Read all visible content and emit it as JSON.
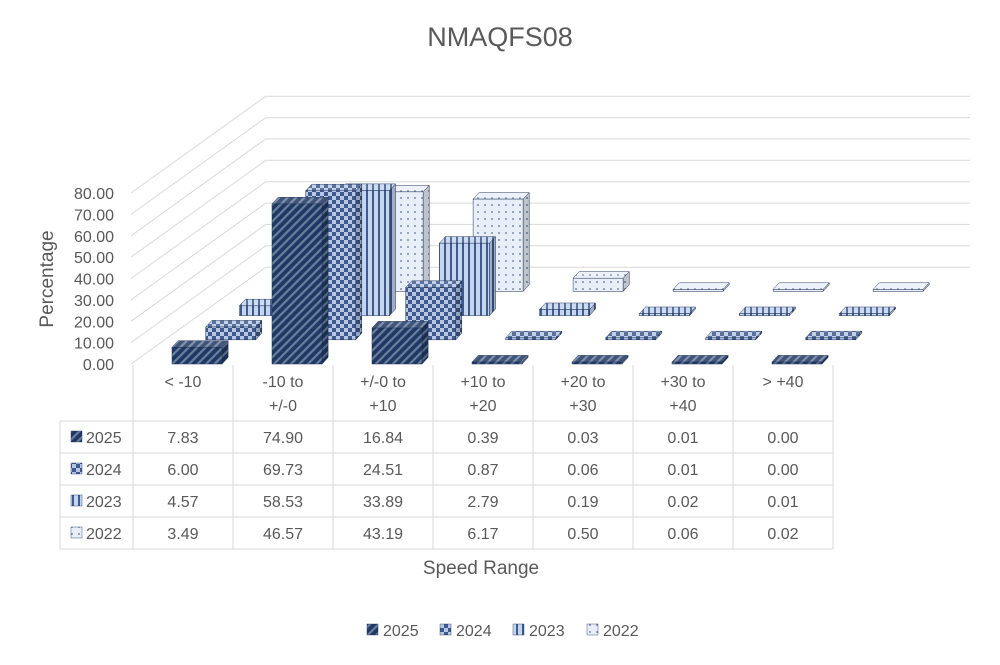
{
  "chart_data": {
    "type": "bar",
    "title": "NMAQFS08",
    "xlabel": "Speed Range",
    "ylabel": "Percentage",
    "ylim": [
      0,
      80
    ],
    "yticks": [
      "0.00",
      "10.00",
      "20.00",
      "30.00",
      "40.00",
      "50.00",
      "60.00",
      "70.00",
      "80.00"
    ],
    "category_lines": [
      [
        "< -10"
      ],
      [
        "-10 to",
        "+/-0"
      ],
      [
        "+/-0 to",
        "+10"
      ],
      [
        "+10 to",
        "+20"
      ],
      [
        "+20 to",
        "+30"
      ],
      [
        "+30 to",
        "+40"
      ],
      [
        "> +40"
      ]
    ],
    "categories": [
      "< -10",
      "-10 to +/-0",
      "+/-0 to +10",
      "+10 to +20",
      "+20 to +30",
      "+30 to +40",
      "> +40"
    ],
    "series": [
      {
        "name": "2025",
        "values": [
          7.83,
          74.9,
          16.84,
          0.39,
          0.03,
          0.01,
          0.0
        ],
        "display": [
          "7.83",
          "74.90",
          "16.84",
          "0.39",
          "0.03",
          "0.01",
          "0.00"
        ]
      },
      {
        "name": "2024",
        "values": [
          6.0,
          69.73,
          24.51,
          0.87,
          0.06,
          0.01,
          0.0
        ],
        "display": [
          "6.00",
          "69.73",
          "24.51",
          "0.87",
          "0.06",
          "0.01",
          "0.00"
        ]
      },
      {
        "name": "2023",
        "values": [
          4.57,
          58.53,
          33.89,
          2.79,
          0.19,
          0.02,
          0.01
        ],
        "display": [
          "4.57",
          "58.53",
          "33.89",
          "2.79",
          "0.19",
          "0.02",
          "0.01"
        ]
      },
      {
        "name": "2022",
        "values": [
          3.49,
          46.57,
          43.19,
          6.17,
          0.5,
          0.06,
          0.02
        ],
        "display": [
          "3.49",
          "46.57",
          "43.19",
          "6.17",
          "0.50",
          "0.06",
          "0.02"
        ]
      }
    ],
    "legend_position": "bottom",
    "data_table": true,
    "grid": true,
    "colors": {
      "2025": "#203864",
      "2024": "#6f86b6",
      "2023": "#b4c7e7",
      "2022": "#dae3f3",
      "gridline": "#d9d9d9",
      "text": "#595959"
    }
  }
}
